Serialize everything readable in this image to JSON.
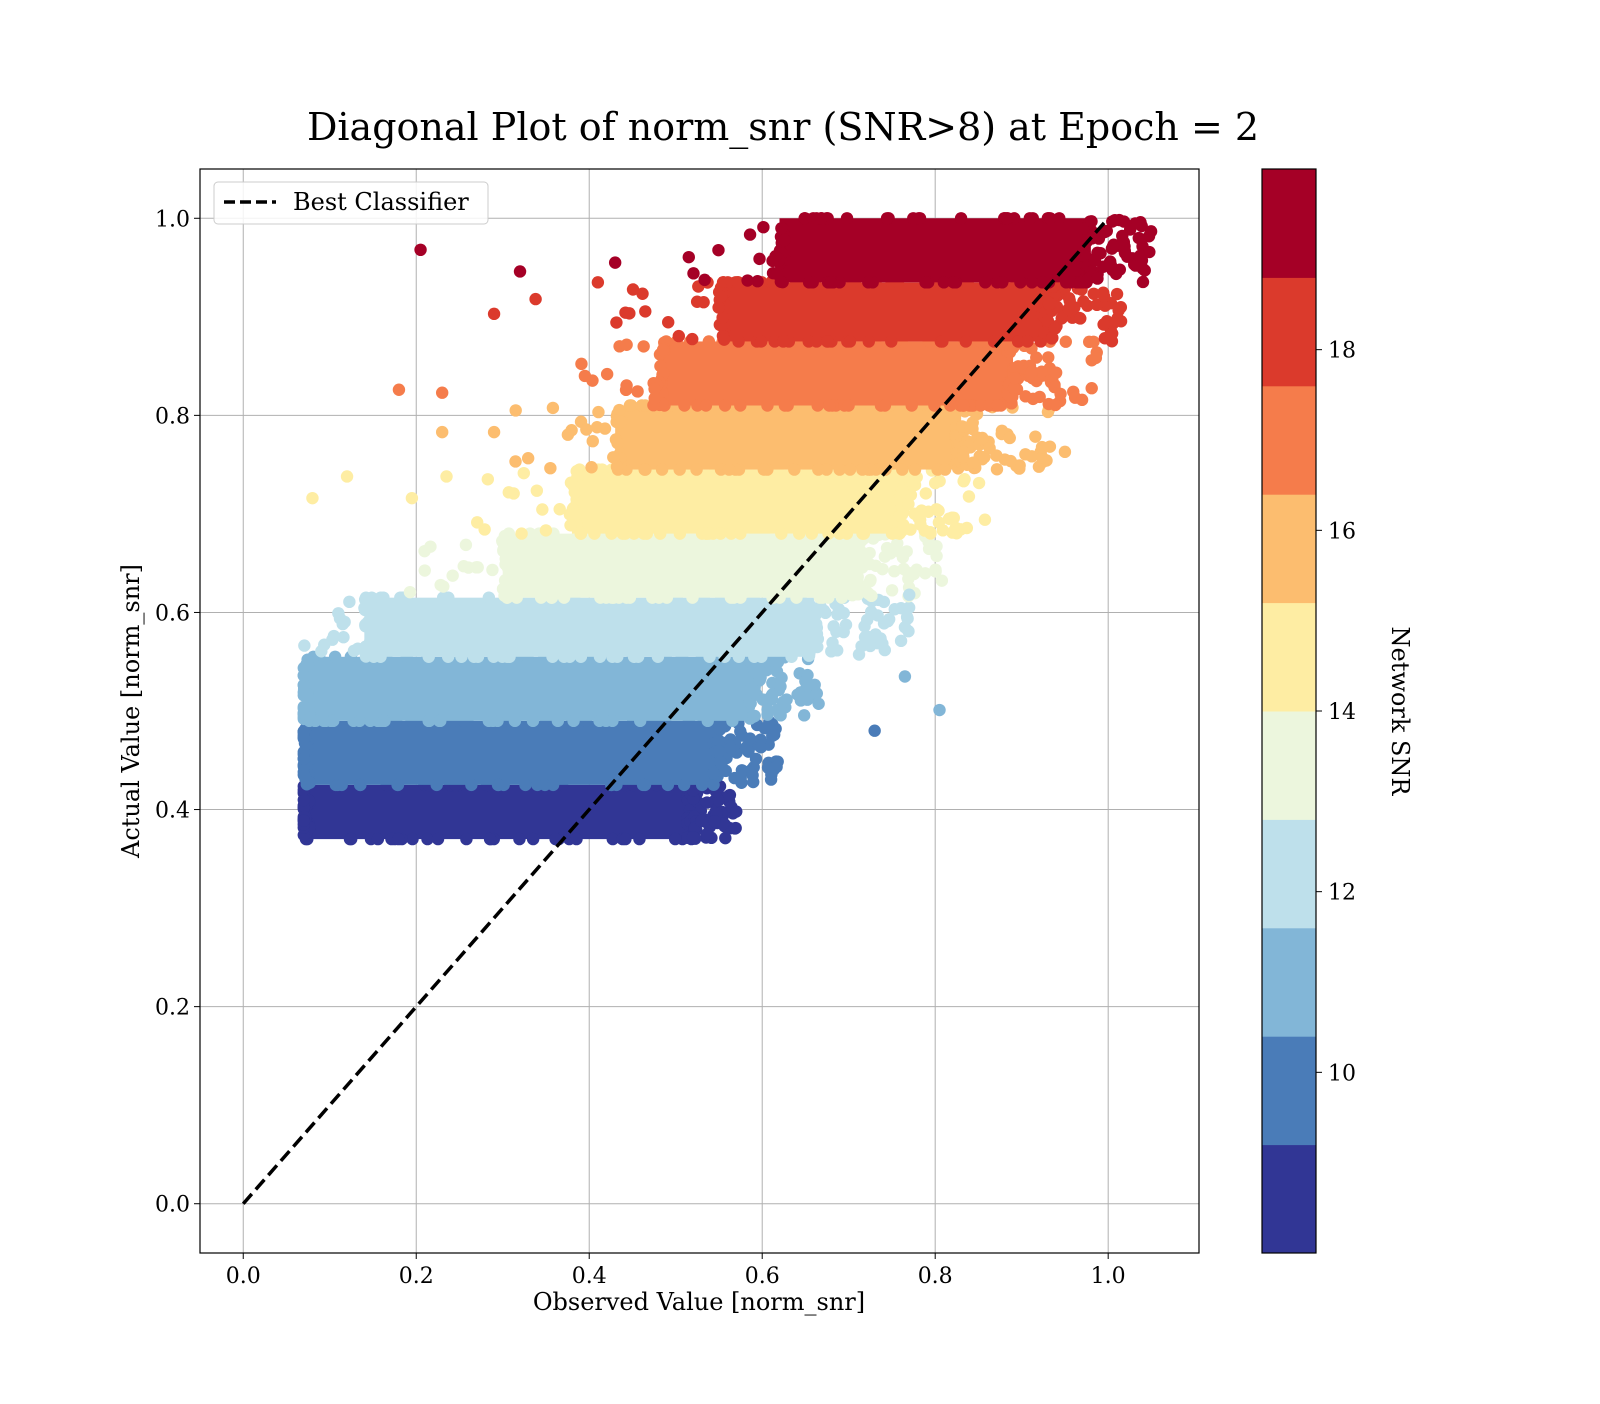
{
  "chart_data": {
    "type": "scatter",
    "title": "Diagonal Plot of norm_snr (SNR>8) at Epoch = 2",
    "xlabel": "Observed Value [norm_snr]",
    "ylabel": "Actual Value [norm_snr]",
    "xlim": [
      -0.05,
      1.105
    ],
    "ylim": [
      -0.05,
      1.05
    ],
    "x_ticks": [
      "0.0",
      "0.2",
      "0.4",
      "0.6",
      "0.8",
      "1.0"
    ],
    "y_ticks": [
      "0.0",
      "0.2",
      "0.4",
      "0.6",
      "0.8",
      "1.0"
    ],
    "grid": true,
    "legend": {
      "placement": "upper-left",
      "entries": [
        "Best Classifier"
      ]
    },
    "reference_line": {
      "name": "Best Classifier",
      "x": [
        0,
        1
      ],
      "y": [
        0,
        1
      ],
      "style": "dashed",
      "color": "#000000"
    },
    "colorbar": {
      "label": "Network SNR",
      "vmin": 8,
      "vmax": 20,
      "ticks": [
        "10",
        "12",
        "14",
        "16",
        "18"
      ],
      "bins": [
        {
          "from": 8.0,
          "to": 9.2,
          "color": "#313695"
        },
        {
          "from": 9.2,
          "to": 10.4,
          "color": "#4a7cb8"
        },
        {
          "from": 10.4,
          "to": 11.6,
          "color": "#82b6d7"
        },
        {
          "from": 11.6,
          "to": 12.8,
          "color": "#bee0eb"
        },
        {
          "from": 12.8,
          "to": 14.0,
          "color": "#ecf6dd"
        },
        {
          "from": 14.0,
          "to": 15.2,
          "color": "#feeda3"
        },
        {
          "from": 15.2,
          "to": 16.4,
          "color": "#fcbd6f"
        },
        {
          "from": 16.4,
          "to": 17.6,
          "color": "#f57c4b"
        },
        {
          "from": 17.6,
          "to": 18.8,
          "color": "#db3a2c"
        },
        {
          "from": 18.8,
          "to": 20.0,
          "color": "#a50026"
        }
      ]
    },
    "scatter_bands": [
      {
        "y_min": 0.37,
        "y_max": 0.425,
        "x_min": 0.07,
        "x_max": 0.52,
        "x_tail": 0.57,
        "color": "#313695"
      },
      {
        "y_min": 0.425,
        "y_max": 0.49,
        "x_min": 0.07,
        "x_max": 0.55,
        "x_tail": 0.62,
        "color": "#4a7cb8"
      },
      {
        "y_min": 0.49,
        "y_max": 0.555,
        "x_min": 0.07,
        "x_max": 0.59,
        "x_tail": 0.67,
        "color": "#82b6d7"
      },
      {
        "y_min": 0.555,
        "y_max": 0.615,
        "x_min": 0.14,
        "x_max": 0.66,
        "x_tail": 0.77,
        "color": "#bee0eb"
      },
      {
        "y_min": 0.615,
        "y_max": 0.68,
        "x_min": 0.3,
        "x_max": 0.71,
        "x_tail": 0.81,
        "color": "#ecf6dd"
      },
      {
        "y_min": 0.68,
        "y_max": 0.745,
        "x_min": 0.38,
        "x_max": 0.76,
        "x_tail": 0.86,
        "color": "#feeda3"
      },
      {
        "y_min": 0.745,
        "y_max": 0.81,
        "x_min": 0.43,
        "x_max": 0.83,
        "x_tail": 0.95,
        "color": "#fcbd6f"
      },
      {
        "y_min": 0.81,
        "y_max": 0.875,
        "x_min": 0.48,
        "x_max": 0.89,
        "x_tail": 0.99,
        "color": "#f57c4b"
      },
      {
        "y_min": 0.875,
        "y_max": 0.935,
        "x_min": 0.55,
        "x_max": 0.93,
        "x_tail": 1.02,
        "color": "#db3a2c"
      },
      {
        "y_min": 0.935,
        "y_max": 1.0,
        "x_min": 0.62,
        "x_max": 0.98,
        "x_tail": 1.05,
        "color": "#a50026"
      }
    ],
    "outliers": [
      {
        "x": 0.205,
        "y": 0.968,
        "color": "#a50026"
      },
      {
        "x": 0.32,
        "y": 0.946,
        "color": "#a50026"
      },
      {
        "x": 0.43,
        "y": 0.955,
        "color": "#a50026"
      },
      {
        "x": 0.29,
        "y": 0.903,
        "color": "#db3a2c"
      },
      {
        "x": 0.338,
        "y": 0.918,
        "color": "#db3a2c"
      },
      {
        "x": 0.41,
        "y": 0.935,
        "color": "#db3a2c"
      },
      {
        "x": 0.18,
        "y": 0.826,
        "color": "#f57c4b"
      },
      {
        "x": 0.23,
        "y": 0.823,
        "color": "#f57c4b"
      },
      {
        "x": 0.395,
        "y": 0.84,
        "color": "#f57c4b"
      },
      {
        "x": 0.23,
        "y": 0.783,
        "color": "#fcbd6f"
      },
      {
        "x": 0.29,
        "y": 0.783,
        "color": "#fcbd6f"
      },
      {
        "x": 0.315,
        "y": 0.805,
        "color": "#fcbd6f"
      },
      {
        "x": 0.95,
        "y": 0.763,
        "color": "#fcbd6f"
      },
      {
        "x": 0.08,
        "y": 0.716,
        "color": "#feeda3"
      },
      {
        "x": 0.12,
        "y": 0.738,
        "color": "#feeda3"
      },
      {
        "x": 0.195,
        "y": 0.716,
        "color": "#feeda3"
      },
      {
        "x": 0.235,
        "y": 0.738,
        "color": "#feeda3"
      },
      {
        "x": 0.77,
        "y": 0.618,
        "color": "#bee0eb"
      },
      {
        "x": 0.765,
        "y": 0.585,
        "color": "#bee0eb"
      },
      {
        "x": 0.805,
        "y": 0.501,
        "color": "#82b6d7"
      },
      {
        "x": 0.765,
        "y": 0.535,
        "color": "#82b6d7"
      },
      {
        "x": 0.73,
        "y": 0.48,
        "color": "#4a7cb8"
      },
      {
        "x": 0.57,
        "y": 0.398,
        "color": "#313695"
      },
      {
        "x": 0.52,
        "y": 0.372,
        "color": "#313695"
      }
    ]
  }
}
